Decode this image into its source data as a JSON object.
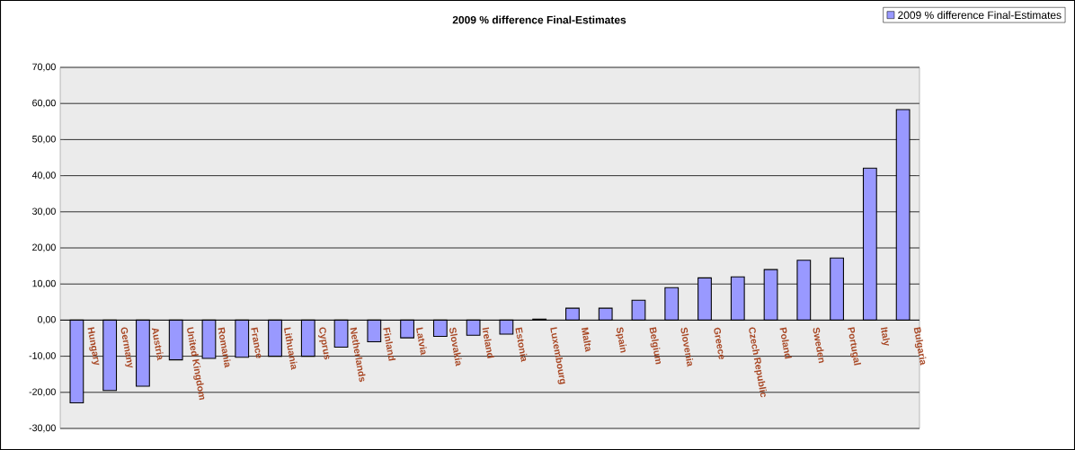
{
  "chart_data": {
    "type": "bar",
    "title": "2009 % difference Final-Estimates",
    "categories": [
      "Hungary",
      "Germany",
      "Austria",
      "United Kingdom",
      "Romania",
      "France",
      "Lithuania",
      "Cyprus",
      "Netherlands",
      "Finland",
      "Latvia",
      "Slovakia",
      "Ireland",
      "Estonia",
      "Luxembourg",
      "Malta",
      "Spain",
      "Belgium",
      "Slovenia",
      "Greece",
      "Czech Republic",
      "Poland",
      "Sweden",
      "Portugal",
      "Italy",
      "Bulgaria"
    ],
    "series": [
      {
        "name": "2009 % difference Final-Estimates",
        "color": "#9999ff",
        "values": [
          -22.9,
          -19.5,
          -18.3,
          -11.0,
          -10.6,
          -10.3,
          -10.0,
          -10.0,
          -7.5,
          -6.0,
          -4.9,
          -4.5,
          -4.2,
          -3.9,
          0.3,
          3.3,
          3.3,
          5.5,
          9.0,
          11.7,
          12.0,
          14.0,
          16.6,
          17.2,
          42.1,
          58.3
        ]
      }
    ],
    "ylim": [
      -30,
      70
    ],
    "yticks": [
      {
        "value": -30,
        "label": "-30,00"
      },
      {
        "value": -20,
        "label": "-20,00"
      },
      {
        "value": -10,
        "label": "-10,00"
      },
      {
        "value": 0,
        "label": "0,00"
      },
      {
        "value": 10,
        "label": "10,00"
      },
      {
        "value": 20,
        "label": "20,00"
      },
      {
        "value": 30,
        "label": "30,00"
      },
      {
        "value": 40,
        "label": "40,00"
      },
      {
        "value": 50,
        "label": "50,00"
      },
      {
        "value": 60,
        "label": "60,00"
      },
      {
        "value": 70,
        "label": "70,00"
      }
    ],
    "grid": "y",
    "legend": "top right"
  }
}
